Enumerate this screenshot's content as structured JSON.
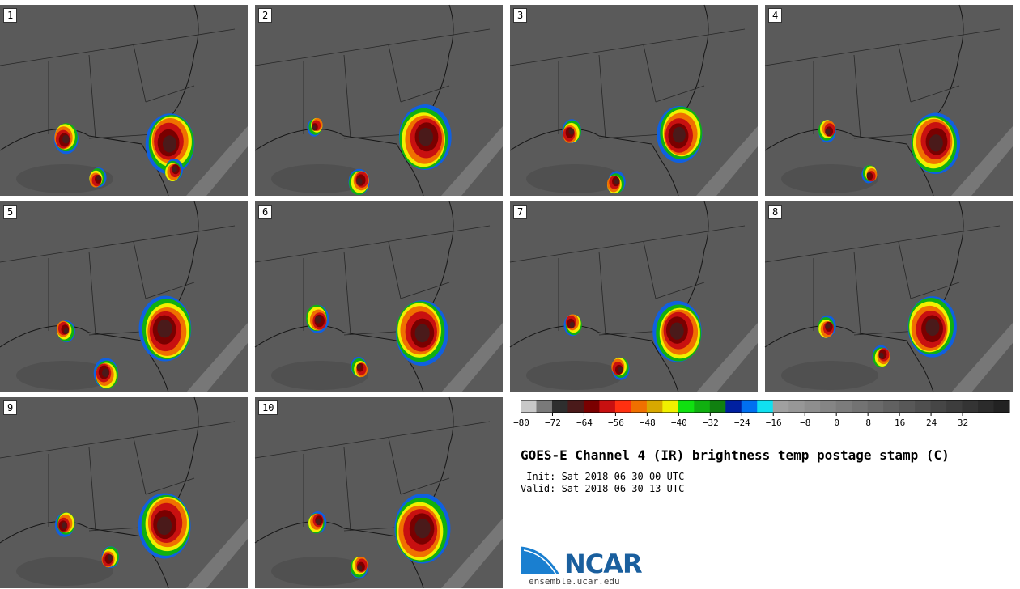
{
  "stamps": [
    {
      "label": "1"
    },
    {
      "label": "2"
    },
    {
      "label": "3"
    },
    {
      "label": "4"
    },
    {
      "label": "5"
    },
    {
      "label": "6"
    },
    {
      "label": "7"
    },
    {
      "label": "8"
    },
    {
      "label": "9"
    },
    {
      "label": "10"
    }
  ],
  "colorbar": {
    "colors": [
      "#c8c8c8",
      "#7a7a7a",
      "#2e2e2e",
      "#4a1a1a",
      "#7a0000",
      "#c81010",
      "#ff3010",
      "#f07000",
      "#d8a800",
      "#f0f000",
      "#10e010",
      "#10b010",
      "#108010",
      "#0020a0",
      "#0070f0",
      "#10e0f0",
      "#a0a0a0",
      "#979797",
      "#8e8e8e",
      "#858585",
      "#7c7c7c",
      "#737373",
      "#6a6a6a",
      "#616161",
      "#585858",
      "#4f4f4f",
      "#464646",
      "#3d3d3d",
      "#343434",
      "#2b2b2b",
      "#222222"
    ],
    "tick_labels": [
      "−80",
      "−72",
      "−64",
      "−56",
      "−48",
      "−40",
      "−32",
      "−24",
      "−16",
      "−8",
      "0",
      "8",
      "16",
      "24",
      "32"
    ]
  },
  "title": "GOES-E Channel 4 (IR) brightness temp postage stamp (C)",
  "init": " Init: Sat 2018-06-30 00 UTC",
  "valid": "Valid: Sat 2018-06-30 13 UTC",
  "logo": {
    "text": "NCAR",
    "url": "ensemble.ucar.edu"
  }
}
